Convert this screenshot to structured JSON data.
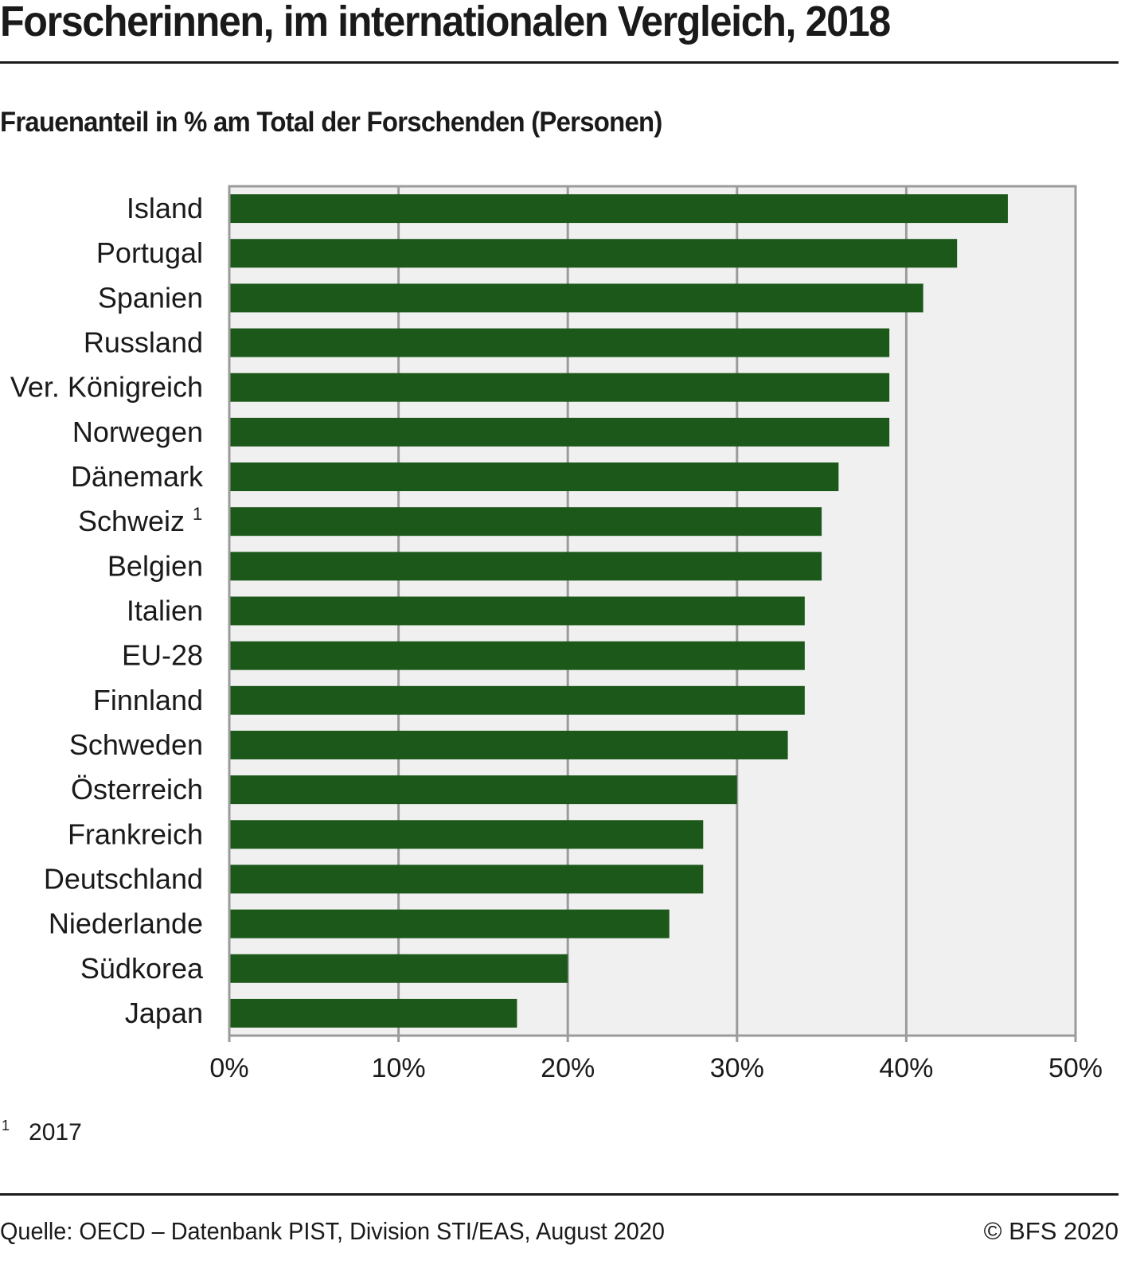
{
  "header": {
    "title": "Forscherinnen, im internationalen Vergleich, 2018",
    "subtitle": "Frauenanteil in % am Total der Forschenden (Personen)"
  },
  "chart_data": {
    "type": "bar",
    "orientation": "horizontal",
    "title": "Forscherinnen, im internationalen Vergleich, 2018",
    "subtitle": "Frauenanteil in % am Total der Forschenden (Personen)",
    "xlabel": "",
    "ylabel": "",
    "xlim": [
      0,
      50
    ],
    "grid": true,
    "categories": [
      "Island",
      "Portugal",
      "Spanien",
      "Russland",
      "Ver. Königreich",
      "Norwegen",
      "Dänemark",
      "Schweiz",
      "Belgien",
      "Italien",
      "EU-28",
      "Finnland",
      "Schweden",
      "Österreich",
      "Frankreich",
      "Deutschland",
      "Niederlande",
      "Südkorea",
      "Japan"
    ],
    "category_footnotes": {
      "Schweiz": "1"
    },
    "values": [
      46,
      43,
      41,
      39,
      39,
      39,
      36,
      35,
      35,
      34,
      34,
      34,
      33,
      30,
      28,
      28,
      26,
      20,
      17
    ],
    "tick_values": [
      0,
      10,
      20,
      30,
      40,
      50
    ],
    "tick_labels": [
      "0%",
      "10%",
      "20%",
      "30%",
      "40%",
      "50%"
    ],
    "bar_color": "#1b5819",
    "plot_background": "#f0f0f0",
    "grid_color": "#9b9b9b"
  },
  "footnote": {
    "mark": "1",
    "text": "2017"
  },
  "footer": {
    "source": "Quelle: OECD – Datenbank PIST, Division STI/EAS, August 2020",
    "copyright": "© BFS 2020"
  }
}
